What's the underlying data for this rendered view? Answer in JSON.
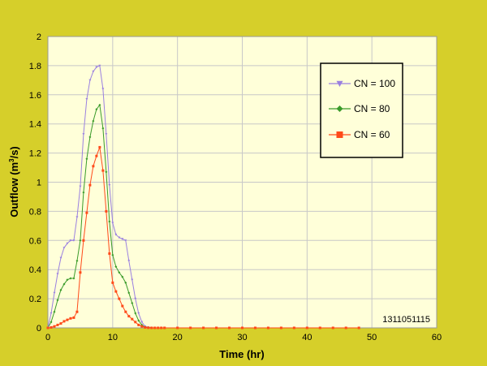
{
  "chart_data": {
    "type": "line",
    "title": "",
    "xlabel": "Time (hr)",
    "ylabel_main": "Outflow (m",
    "ylabel_sup": "3",
    "ylabel_tail": "/s)",
    "xlim": [
      0,
      60
    ],
    "ylim": [
      0,
      2
    ],
    "x_ticks": [
      "0",
      "10",
      "20",
      "30",
      "40",
      "50",
      "60"
    ],
    "y_ticks": [
      "0",
      "0.2",
      "0.4",
      "0.6",
      "0.8",
      "1",
      "1.2",
      "1.4",
      "1.6",
      "1.8",
      "2"
    ],
    "grid": "horizontal and vertical",
    "legend_position": "top-right",
    "annotation": "1311051115",
    "colors": {
      "page_background": "#d6cf2a",
      "plot_background": "#ffffd9",
      "grid": "#c8c8c8"
    },
    "x": [
      0,
      0.5,
      1,
      1.5,
      2,
      2.5,
      3,
      3.5,
      4,
      4.5,
      5,
      5.5,
      6,
      6.5,
      7,
      7.5,
      8,
      8.5,
      9,
      9.5,
      10,
      10.5,
      11,
      11.5,
      12,
      12.5,
      13,
      13.5,
      14,
      14.5,
      15,
      15.5,
      16,
      16.5,
      17,
      17.5,
      18,
      20,
      22,
      24,
      26,
      28,
      30,
      32,
      34,
      36,
      38,
      40,
      42,
      44,
      46,
      48
    ],
    "series": [
      {
        "name": "CN = 100",
        "color": "#9a80e0",
        "marker": "triangle-down",
        "values": [
          0,
          0.1,
          0.24,
          0.37,
          0.48,
          0.55,
          0.58,
          0.6,
          0.6,
          0.76,
          0.97,
          1.33,
          1.57,
          1.7,
          1.76,
          1.79,
          1.8,
          1.64,
          1.33,
          0.98,
          0.72,
          0.64,
          0.62,
          0.61,
          0.6,
          0.46,
          0.33,
          0.2,
          0.1,
          0.04,
          0.01,
          0.003,
          0.001,
          0,
          0,
          0,
          0,
          0,
          0,
          0,
          0,
          0,
          0,
          0,
          0,
          0,
          0,
          0,
          0,
          0,
          0,
          0
        ]
      },
      {
        "name": "CN = 80",
        "color": "#3a9b2a",
        "marker": "diamond",
        "values": [
          0,
          0.04,
          0.11,
          0.19,
          0.26,
          0.3,
          0.33,
          0.34,
          0.34,
          0.46,
          0.6,
          0.93,
          1.16,
          1.31,
          1.42,
          1.5,
          1.53,
          1.37,
          1.07,
          0.73,
          0.5,
          0.42,
          0.38,
          0.35,
          0.31,
          0.24,
          0.17,
          0.1,
          0.05,
          0.02,
          0.005,
          0.002,
          0.001,
          0,
          0,
          0,
          0,
          0,
          0,
          0,
          0,
          0,
          0,
          0,
          0,
          0,
          0,
          0,
          0,
          0,
          0,
          0
        ]
      },
      {
        "name": "CN = 60",
        "color": "#ff4a1a",
        "marker": "square",
        "values": [
          0,
          0.003,
          0.01,
          0.02,
          0.03,
          0.045,
          0.055,
          0.065,
          0.07,
          0.11,
          0.38,
          0.6,
          0.79,
          0.98,
          1.11,
          1.18,
          1.24,
          1.08,
          0.8,
          0.51,
          0.31,
          0.25,
          0.2,
          0.15,
          0.11,
          0.08,
          0.06,
          0.04,
          0.02,
          0.01,
          0.003,
          0.001,
          0,
          0,
          0,
          0,
          0,
          0,
          0,
          0,
          0,
          0,
          0,
          0,
          0,
          0,
          0,
          0,
          0,
          0,
          0,
          0
        ]
      }
    ]
  }
}
